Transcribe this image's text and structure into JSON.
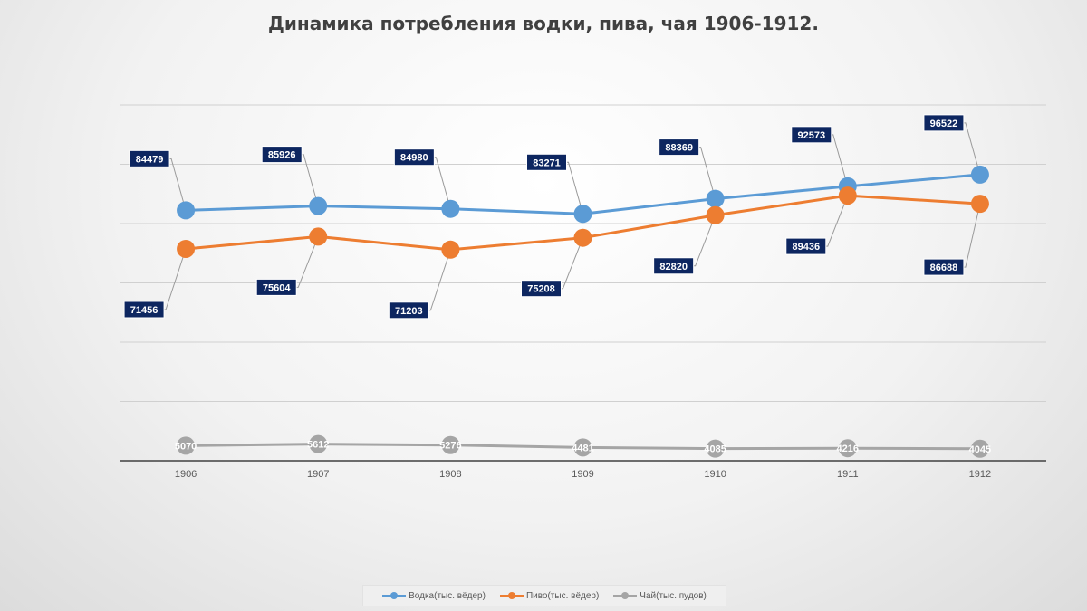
{
  "chart_data": {
    "type": "line",
    "title": "Динамика потребления водки, пива, чая 1906-1912.",
    "categories": [
      "1906",
      "1907",
      "1908",
      "1909",
      "1910",
      "1911",
      "1912"
    ],
    "ylim": [
      0,
      120000
    ],
    "grid": true,
    "legend_position": "bottom",
    "series": [
      {
        "name": "Водка(тыс. вёдер)",
        "color": "#5b9bd5",
        "values": [
          84479,
          85926,
          84980,
          83271,
          88369,
          92573,
          96522
        ]
      },
      {
        "name": "Пиво(тыс. вёдер)",
        "color": "#ed7d31",
        "values": [
          71456,
          75604,
          71203,
          75208,
          82820,
          89436,
          86688
        ]
      },
      {
        "name": "Чай(тыс. пудов)",
        "color": "#a5a5a5",
        "values": [
          5070,
          5612,
          5276,
          4481,
          4085,
          4216,
          4045
        ]
      }
    ],
    "label_box_color": "#0d2660"
  }
}
